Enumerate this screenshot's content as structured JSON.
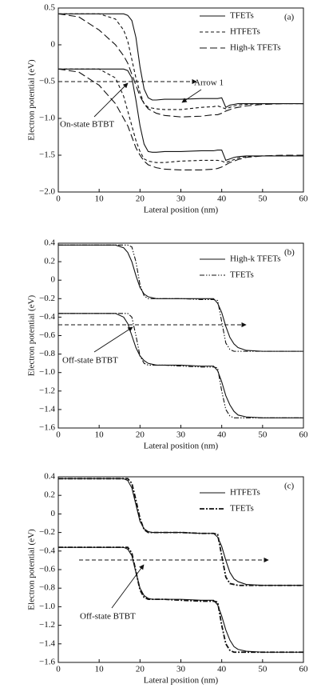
{
  "chart_data": [
    {
      "type": "line",
      "label": "(a)",
      "xlabel": "Lateral position (nm)",
      "ylabel": "Electron potential (eV)",
      "annotations": [
        "Arrow 1",
        "On-state BTBT"
      ],
      "xlim": [
        0,
        60
      ],
      "xticks": [
        0,
        10,
        20,
        30,
        40,
        50,
        60
      ],
      "ylim": [
        -2,
        0.5
      ],
      "yticks": [
        {
          "value": -2,
          "label": "−2.0"
        },
        {
          "value": -1.5,
          "label": "−1.5"
        },
        {
          "value": -1,
          "label": "−1.0"
        },
        {
          "value": -0.5,
          "label": "−0.5"
        },
        0,
        0.5
      ],
      "legend": "upper-right",
      "x": [
        0,
        5,
        10,
        14,
        16,
        17,
        18,
        19,
        20,
        21,
        22,
        23,
        24,
        26,
        30,
        35,
        38,
        39,
        40,
        41,
        42,
        43,
        44,
        46,
        50,
        55,
        60
      ],
      "series": [
        {
          "name": "TFETs",
          "color": "#111111",
          "style": "solid",
          "values": [
            0.42,
            0.42,
            0.42,
            0.42,
            0.42,
            0.4,
            0.33,
            0.1,
            -0.3,
            -0.6,
            -0.72,
            -0.75,
            -0.75,
            -0.74,
            -0.74,
            -0.73,
            -0.73,
            -0.73,
            -0.72,
            -0.85,
            -0.82,
            -0.81,
            -0.8,
            -0.8,
            -0.8,
            -0.8,
            -0.8
          ],
          "lower_values": [
            -0.33,
            -0.33,
            -0.33,
            -0.33,
            -0.33,
            -0.35,
            -0.45,
            -0.75,
            -1.1,
            -1.35,
            -1.45,
            -1.46,
            -1.46,
            -1.45,
            -1.45,
            -1.44,
            -1.44,
            -1.43,
            -1.43,
            -1.57,
            -1.55,
            -1.53,
            -1.52,
            -1.51,
            -1.51,
            -1.51,
            -1.51
          ]
        },
        {
          "name": "HTFETs",
          "color": "#111111",
          "style": "dashed",
          "values": [
            0.42,
            0.42,
            0.42,
            0.35,
            0.2,
            0.05,
            -0.2,
            -0.45,
            -0.65,
            -0.8,
            -0.85,
            -0.86,
            -0.87,
            -0.88,
            -0.88,
            -0.85,
            -0.84,
            -0.83,
            -0.85,
            -0.87,
            -0.85,
            -0.83,
            -0.82,
            -0.81,
            -0.8,
            -0.8,
            -0.8
          ],
          "lower_values": [
            -0.33,
            -0.33,
            -0.33,
            -0.45,
            -0.7,
            -0.9,
            -1.1,
            -1.3,
            -1.45,
            -1.55,
            -1.58,
            -1.59,
            -1.6,
            -1.6,
            -1.58,
            -1.57,
            -1.57,
            -1.57,
            -1.58,
            -1.6,
            -1.58,
            -1.56,
            -1.54,
            -1.52,
            -1.51,
            -1.51,
            -1.51
          ]
        },
        {
          "name": "High-k TFETs",
          "color": "#111111",
          "style": "long-dashed",
          "values": [
            0.42,
            0.38,
            0.2,
            0.0,
            -0.15,
            -0.25,
            -0.4,
            -0.55,
            -0.7,
            -0.8,
            -0.87,
            -0.9,
            -0.93,
            -0.96,
            -0.98,
            -0.97,
            -0.95,
            -0.95,
            -0.93,
            -0.9,
            -0.88,
            -0.86,
            -0.85,
            -0.83,
            -0.81,
            -0.8,
            -0.8
          ],
          "lower_values": [
            -0.33,
            -0.37,
            -0.55,
            -0.8,
            -1.0,
            -1.1,
            -1.25,
            -1.4,
            -1.5,
            -1.58,
            -1.63,
            -1.65,
            -1.67,
            -1.69,
            -1.7,
            -1.7,
            -1.69,
            -1.68,
            -1.66,
            -1.63,
            -1.6,
            -1.58,
            -1.56,
            -1.53,
            -1.51,
            -1.5,
            -1.5
          ]
        }
      ]
    },
    {
      "type": "line",
      "label": "(b)",
      "xlabel": "Lateral position (nm)",
      "ylabel": "Electron potential (eV)",
      "annotations": [
        "Off-state BTBT"
      ],
      "xlim": [
        0,
        60
      ],
      "xticks": [
        0,
        10,
        20,
        30,
        40,
        50,
        60
      ],
      "ylim": [
        -1.6,
        0.4
      ],
      "yticks": [
        {
          "value": -1.6,
          "label": "−1.6"
        },
        {
          "value": -1.4,
          "label": "−1.4"
        },
        {
          "value": -1.2,
          "label": "−1.2"
        },
        {
          "value": -1,
          "label": "−1.0"
        },
        {
          "value": -0.8,
          "label": "−0.8"
        },
        {
          "value": -0.6,
          "label": "−0.6"
        },
        {
          "value": -0.4,
          "label": "−0.4"
        },
        {
          "value": -0.2,
          "label": "−0.2"
        },
        0,
        0.2,
        0.4
      ],
      "legend": "upper-right",
      "x": [
        0,
        5,
        10,
        14,
        16,
        17,
        18,
        19,
        20,
        21,
        22,
        23,
        24,
        26,
        30,
        35,
        38,
        39,
        40,
        41,
        42,
        43,
        44,
        46,
        50,
        55,
        60
      ],
      "series": [
        {
          "name": "High-k TFETs",
          "color": "#111111",
          "style": "solid",
          "values": [
            0.38,
            0.38,
            0.38,
            0.38,
            0.35,
            0.3,
            0.2,
            0.05,
            -0.08,
            -0.15,
            -0.18,
            -0.19,
            -0.2,
            -0.2,
            -0.2,
            -0.2,
            -0.2,
            -0.25,
            -0.35,
            -0.5,
            -0.62,
            -0.69,
            -0.73,
            -0.76,
            -0.77,
            -0.77,
            -0.77
          ],
          "lower_values": [
            -0.36,
            -0.36,
            -0.36,
            -0.36,
            -0.4,
            -0.47,
            -0.6,
            -0.73,
            -0.82,
            -0.87,
            -0.9,
            -0.91,
            -0.92,
            -0.92,
            -0.92,
            -0.93,
            -0.93,
            -0.98,
            -1.1,
            -1.25,
            -1.35,
            -1.42,
            -1.46,
            -1.48,
            -1.49,
            -1.49,
            -1.49
          ]
        },
        {
          "name": "TFETs",
          "color": "#111111",
          "style": "dash-dot-dot",
          "values": [
            0.38,
            0.38,
            0.38,
            0.38,
            0.38,
            0.38,
            0.36,
            0.2,
            -0.05,
            -0.17,
            -0.2,
            -0.2,
            -0.2,
            -0.2,
            -0.2,
            -0.21,
            -0.21,
            -0.22,
            -0.45,
            -0.68,
            -0.75,
            -0.77,
            -0.77,
            -0.77,
            -0.77,
            -0.77,
            -0.77
          ],
          "lower_values": [
            -0.36,
            -0.36,
            -0.36,
            -0.36,
            -0.36,
            -0.36,
            -0.4,
            -0.6,
            -0.82,
            -0.9,
            -0.92,
            -0.92,
            -0.92,
            -0.92,
            -0.93,
            -0.94,
            -0.94,
            -0.95,
            -1.2,
            -1.4,
            -1.47,
            -1.49,
            -1.49,
            -1.49,
            -1.49,
            -1.49,
            -1.49
          ]
        }
      ]
    },
    {
      "type": "line",
      "label": "(c)",
      "xlabel": "Lateral position (nm)",
      "ylabel": "Electron potential (eV)",
      "annotations": [
        "Off-state BTBT"
      ],
      "xlim": [
        0,
        60
      ],
      "xticks": [
        0,
        10,
        20,
        30,
        40,
        50,
        60
      ],
      "ylim": [
        -1.6,
        0.4
      ],
      "yticks": [
        {
          "value": -1.6,
          "label": "−1.6"
        },
        {
          "value": -1.4,
          "label": "−1.4"
        },
        {
          "value": -1.2,
          "label": "−1.2"
        },
        {
          "value": -1,
          "label": "−1.0"
        },
        {
          "value": -0.8,
          "label": "−0.8"
        },
        {
          "value": -0.6,
          "label": "−0.6"
        },
        {
          "value": -0.4,
          "label": "−0.4"
        },
        {
          "value": -0.2,
          "label": "−0.2"
        },
        0,
        0.2,
        0.4
      ],
      "legend": "upper-right",
      "x": [
        0,
        5,
        10,
        14,
        16,
        17,
        18,
        19,
        20,
        21,
        22,
        23,
        24,
        26,
        30,
        35,
        38,
        39,
        40,
        41,
        42,
        43,
        44,
        46,
        50,
        55,
        60
      ],
      "series": [
        {
          "name": "HTFETs",
          "color": "#111111",
          "style": "solid",
          "values": [
            0.38,
            0.38,
            0.38,
            0.38,
            0.38,
            0.36,
            0.28,
            0.1,
            -0.08,
            -0.16,
            -0.19,
            -0.2,
            -0.2,
            -0.2,
            -0.2,
            -0.21,
            -0.21,
            -0.25,
            -0.35,
            -0.5,
            -0.63,
            -0.7,
            -0.73,
            -0.76,
            -0.77,
            -0.77,
            -0.77
          ],
          "lower_values": [
            -0.36,
            -0.36,
            -0.36,
            -0.36,
            -0.36,
            -0.38,
            -0.45,
            -0.63,
            -0.8,
            -0.88,
            -0.91,
            -0.92,
            -0.92,
            -0.92,
            -0.92,
            -0.93,
            -0.93,
            -0.98,
            -1.1,
            -1.25,
            -1.36,
            -1.43,
            -1.46,
            -1.48,
            -1.49,
            -1.49,
            -1.49
          ]
        },
        {
          "name": "TFETs",
          "color": "#111111",
          "style": "dash-dot",
          "values": [
            0.38,
            0.38,
            0.38,
            0.38,
            0.38,
            0.38,
            0.33,
            0.15,
            -0.05,
            -0.17,
            -0.2,
            -0.2,
            -0.2,
            -0.2,
            -0.2,
            -0.21,
            -0.21,
            -0.22,
            -0.45,
            -0.68,
            -0.75,
            -0.76,
            -0.77,
            -0.77,
            -0.77,
            -0.77,
            -0.77
          ],
          "lower_values": [
            -0.36,
            -0.36,
            -0.36,
            -0.36,
            -0.36,
            -0.36,
            -0.42,
            -0.62,
            -0.82,
            -0.9,
            -0.92,
            -0.92,
            -0.92,
            -0.92,
            -0.93,
            -0.94,
            -0.94,
            -0.95,
            -1.2,
            -1.4,
            -1.47,
            -1.49,
            -1.49,
            -1.49,
            -1.49,
            -1.49,
            -1.49
          ]
        }
      ]
    }
  ]
}
